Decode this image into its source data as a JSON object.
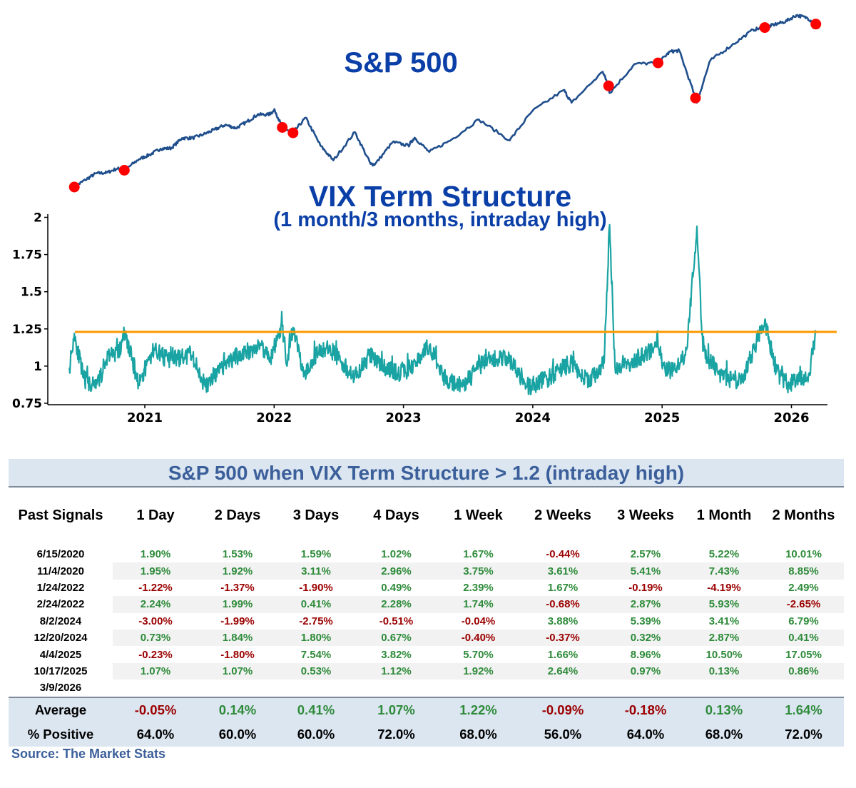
{
  "sp_title": "S&P 500",
  "vix_title": "VIX Term Structure",
  "vix_subtitle": "(1 month/3 months, intraday high)",
  "colors": {
    "sp_line": "#1f4e8c",
    "signal": "#ff0000",
    "vix_line": "#1aa3a3",
    "threshold": "#ff9900",
    "title": "#0b3fa8"
  },
  "chart_data": [
    {
      "type": "line",
      "title": "S&P 500",
      "x": [
        "2020-06-15",
        "2020-07-15",
        "2020-08-15",
        "2020-09-15",
        "2020-10-15",
        "2020-11-04",
        "2020-12-15",
        "2021-01-15",
        "2021-02-15",
        "2021-03-15",
        "2021-04-15",
        "2021-05-15",
        "2021-06-15",
        "2021-07-15",
        "2021-08-15",
        "2021-09-15",
        "2021-10-15",
        "2021-11-15",
        "2021-12-15",
        "2022-01-03",
        "2022-01-24",
        "2022-02-24",
        "2022-03-29",
        "2022-05-10",
        "2022-06-16",
        "2022-08-16",
        "2022-09-30",
        "2022-10-12",
        "2022-12-01",
        "2023-01-15",
        "2023-02-02",
        "2023-03-13",
        "2023-05-15",
        "2023-07-31",
        "2023-10-27",
        "2023-12-29",
        "2024-03-28",
        "2024-04-19",
        "2024-07-16",
        "2024-08-02",
        "2024-08-05",
        "2024-10-15",
        "2024-12-20",
        "2025-01-23",
        "2025-02-19",
        "2025-04-04",
        "2025-04-08",
        "2025-05-15",
        "2025-07-15",
        "2025-09-15",
        "2025-10-17",
        "2025-11-15",
        "2025-12-15",
        "2026-01-15",
        "2026-02-15",
        "2026-03-09"
      ],
      "values": [
        3066,
        3225,
        3372,
        3390,
        3484,
        3444,
        3694,
        3795,
        3930,
        3943,
        4170,
        4173,
        4255,
        4360,
        4468,
        4395,
        4536,
        4700,
        4700,
        4796,
        4410,
        4288,
        4631,
        4001,
        3667,
        4305,
        3586,
        3577,
        4080,
        3999,
        4180,
        3855,
        4136,
        4589,
        4117,
        4770,
        5254,
        4967,
        5667,
        5347,
        5186,
        5842,
        5867,
        6119,
        6144,
        5074,
        4982,
        5917,
        6263,
        6616,
        6664,
        6734,
        6800,
        6944,
        6880,
        6740
      ],
      "signals": [
        "2020-06-15",
        "2020-11-04",
        "2022-01-24",
        "2022-02-24",
        "2024-08-02",
        "2024-12-20",
        "2025-04-04",
        "2025-10-17",
        "2026-03-09"
      ]
    },
    {
      "type": "line",
      "title": "VIX Term Structure",
      "subtitle": "(1 month/3 months, intraday high)",
      "ylim": [
        0.75,
        2.0
      ],
      "yticks": [
        "0.75",
        "1",
        "1.25",
        "1.5",
        "1.75",
        "2"
      ],
      "xticks": [
        "2021",
        "2022",
        "2023",
        "2024",
        "2025",
        "2026"
      ],
      "threshold": 1.23,
      "x": [
        "2020-06-01",
        "2020-06-15",
        "2020-07-10",
        "2020-08-15",
        "2020-09-20",
        "2020-10-25",
        "2020-11-04",
        "2020-12-15",
        "2021-01-28",
        "2021-03-05",
        "2021-05-12",
        "2021-06-20",
        "2021-08-19",
        "2021-09-28",
        "2021-11-26",
        "2021-12-20",
        "2022-01-24",
        "2022-02-07",
        "2022-02-24",
        "2022-03-25",
        "2022-05-10",
        "2022-06-16",
        "2022-08-15",
        "2022-09-30",
        "2022-10-20",
        "2022-12-15",
        "2023-01-20",
        "2023-03-13",
        "2023-04-20",
        "2023-06-15",
        "2023-08-15",
        "2023-10-20",
        "2023-12-15",
        "2024-02-10",
        "2024-04-19",
        "2024-06-10",
        "2024-07-20",
        "2024-08-05",
        "2024-08-20",
        "2024-10-10",
        "2024-12-20",
        "2025-01-10",
        "2025-02-20",
        "2025-03-10",
        "2025-04-08",
        "2025-04-25",
        "2025-06-10",
        "2025-08-10",
        "2025-10-17",
        "2025-11-20",
        "2025-12-20",
        "2026-01-20",
        "2026-02-20",
        "2026-03-09"
      ],
      "values": [
        0.99,
        1.22,
        0.92,
        0.85,
        1.08,
        1.1,
        1.23,
        0.88,
        1.12,
        1.04,
        1.07,
        0.86,
        1.02,
        1.08,
        1.14,
        1.05,
        1.27,
        1.0,
        1.26,
        0.95,
        1.12,
        1.1,
        0.92,
        1.08,
        1.02,
        0.95,
        0.98,
        1.14,
        0.93,
        0.86,
        1.03,
        1.06,
        0.86,
        0.91,
        1.02,
        0.89,
        1.02,
        1.95,
        1.0,
        1.03,
        1.13,
        0.96,
        1.0,
        1.12,
        1.94,
        1.1,
        0.95,
        0.88,
        1.31,
        0.96,
        0.88,
        0.9,
        0.95,
        1.22
      ]
    }
  ],
  "table": {
    "title": "S&P 500 when VIX Term Structure > 1.2 (intraday high)",
    "headers": [
      "Past Signals",
      "1 Day",
      "2 Days",
      "3 Days",
      "4 Days",
      "1 Week",
      "2 Weeks",
      "3 Weeks",
      "1 Month",
      "2 Months"
    ],
    "rows": [
      {
        "date": "6/15/2020",
        "values": [
          "1.90%",
          "1.53%",
          "1.59%",
          "1.02%",
          "1.67%",
          "-0.44%",
          "2.57%",
          "5.22%",
          "10.01%"
        ]
      },
      {
        "date": "11/4/2020",
        "values": [
          "1.95%",
          "1.92%",
          "3.11%",
          "2.96%",
          "3.75%",
          "3.61%",
          "5.41%",
          "7.43%",
          "8.85%"
        ]
      },
      {
        "date": "1/24/2022",
        "values": [
          "-1.22%",
          "-1.37%",
          "-1.90%",
          "0.49%",
          "2.39%",
          "1.67%",
          "-0.19%",
          "-4.19%",
          "2.49%"
        ]
      },
      {
        "date": "2/24/2022",
        "values": [
          "2.24%",
          "1.99%",
          "0.41%",
          "2.28%",
          "1.74%",
          "-0.68%",
          "2.87%",
          "5.93%",
          "-2.65%"
        ]
      },
      {
        "date": "8/2/2024",
        "values": [
          "-3.00%",
          "-1.99%",
          "-2.75%",
          "-0.51%",
          "-0.04%",
          "3.88%",
          "5.39%",
          "3.41%",
          "6.79%"
        ]
      },
      {
        "date": "12/20/2024",
        "values": [
          "0.73%",
          "1.84%",
          "1.80%",
          "0.67%",
          "-0.40%",
          "-0.37%",
          "0.32%",
          "2.87%",
          "0.41%"
        ]
      },
      {
        "date": "4/4/2025",
        "values": [
          "-0.23%",
          "-1.80%",
          "7.54%",
          "3.82%",
          "5.70%",
          "1.66%",
          "8.96%",
          "10.50%",
          "17.05%"
        ]
      },
      {
        "date": "10/17/2025",
        "values": [
          "1.07%",
          "1.07%",
          "0.53%",
          "1.12%",
          "1.92%",
          "2.64%",
          "0.97%",
          "0.13%",
          "0.86%"
        ]
      },
      {
        "date": "3/9/2026",
        "values": [
          "",
          "",
          "",
          "",
          "",
          "",
          "",
          "",
          ""
        ]
      }
    ],
    "average": {
      "label": "Average",
      "values": [
        "-0.05%",
        "0.14%",
        "0.41%",
        "1.07%",
        "1.22%",
        "-0.09%",
        "-0.18%",
        "0.13%",
        "1.64%"
      ]
    },
    "positive": {
      "label": "% Positive",
      "values": [
        "64.0%",
        "60.0%",
        "60.0%",
        "72.0%",
        "68.0%",
        "56.0%",
        "64.0%",
        "68.0%",
        "72.0%"
      ]
    }
  },
  "source": "Source: The Market Stats"
}
